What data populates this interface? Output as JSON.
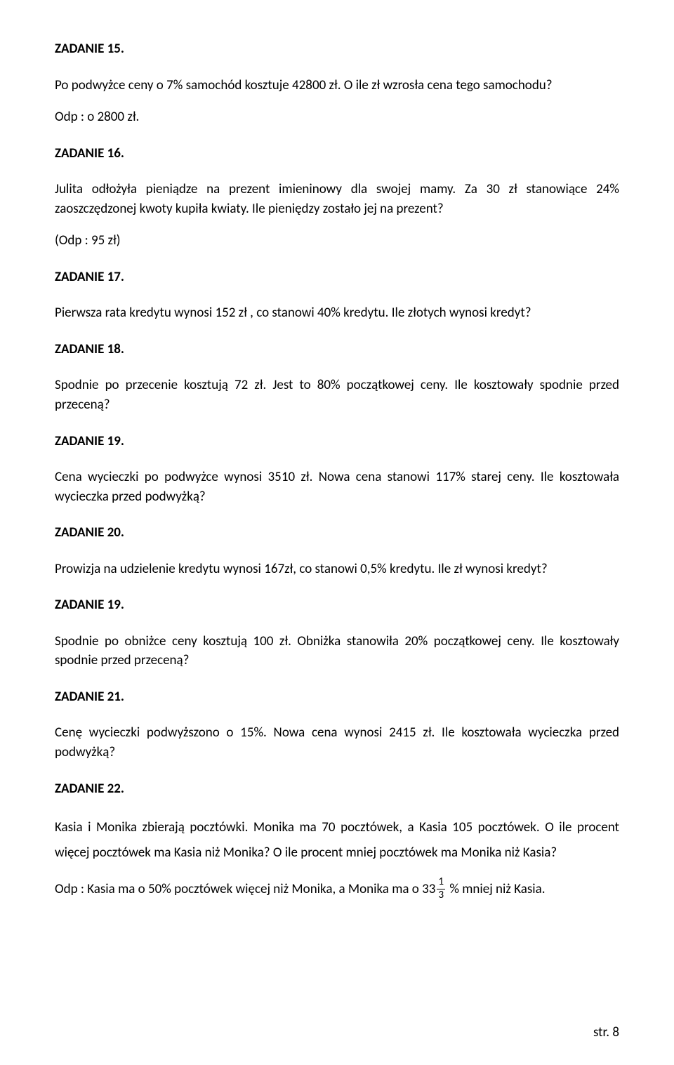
{
  "z15": {
    "h": "ZADANIE 15.",
    "p": "Po podwyżce ceny o 7% samochód kosztuje 42800 zł. O ile zł wzrosła cena tego samochodu?",
    "a": "Odp : o 2800 zł."
  },
  "z16": {
    "h": "ZADANIE 16.",
    "p": "Julita odłożyła pieniądze na prezent imieninowy dla swojej mamy. Za 30 zł stanowiące 24% zaoszczędzonej kwoty kupiła kwiaty. Ile pieniędzy zostało jej na prezent?",
    "a": "(Odp : 95 zł)"
  },
  "z17": {
    "h": "ZADANIE 17.",
    "p": "Pierwsza rata kredytu wynosi 152 zł , co stanowi 40% kredytu. Ile złotych wynosi kredyt?"
  },
  "z18": {
    "h": "ZADANIE 18.",
    "p": "Spodnie po przecenie kosztują 72 zł. Jest to 80% początkowej ceny. Ile kosztowały spodnie przed przeceną?"
  },
  "z19": {
    "h": "ZADANIE 19.",
    "p": "Cena wycieczki po podwyżce wynosi 3510 zł. Nowa cena stanowi 117% starej ceny. Ile kosztowała wycieczka przed podwyżką?"
  },
  "z20": {
    "h": "ZADANIE 20.",
    "p": "Prowizja na udzielenie kredytu wynosi 167zł, co stanowi 0,5% kredytu. Ile zł wynosi kredyt?"
  },
  "z19b": {
    "h": "ZADANIE 19.",
    "p": "Spodnie po obniżce ceny kosztują 100 zł. Obniżka stanowiła 20% początkowej ceny. Ile kosztowały spodnie przed przeceną?"
  },
  "z21": {
    "h": "ZADANIE 21.",
    "p": "Cenę wycieczki podwyższono o 15%. Nowa cena wynosi 2415 zł. Ile kosztowała wycieczka przed podwyżką?"
  },
  "z22": {
    "h": "ZADANIE 22.",
    "p": "Kasia i Monika zbierają pocztówki. Monika ma 70 pocztówek, a Kasia 105 pocztówek. O ile procent więcej pocztówek ma Kasia niż Monika? O ile procent mniej pocztówek ma Monika niż Kasia?",
    "a_pre": "Odp : Kasia ma o 50% pocztówek więcej niż Monika, a Monika ma o 33",
    "frac_num": "1",
    "frac_den": "3",
    "a_post": " % mniej niż Kasia."
  },
  "footer": "str. 8"
}
